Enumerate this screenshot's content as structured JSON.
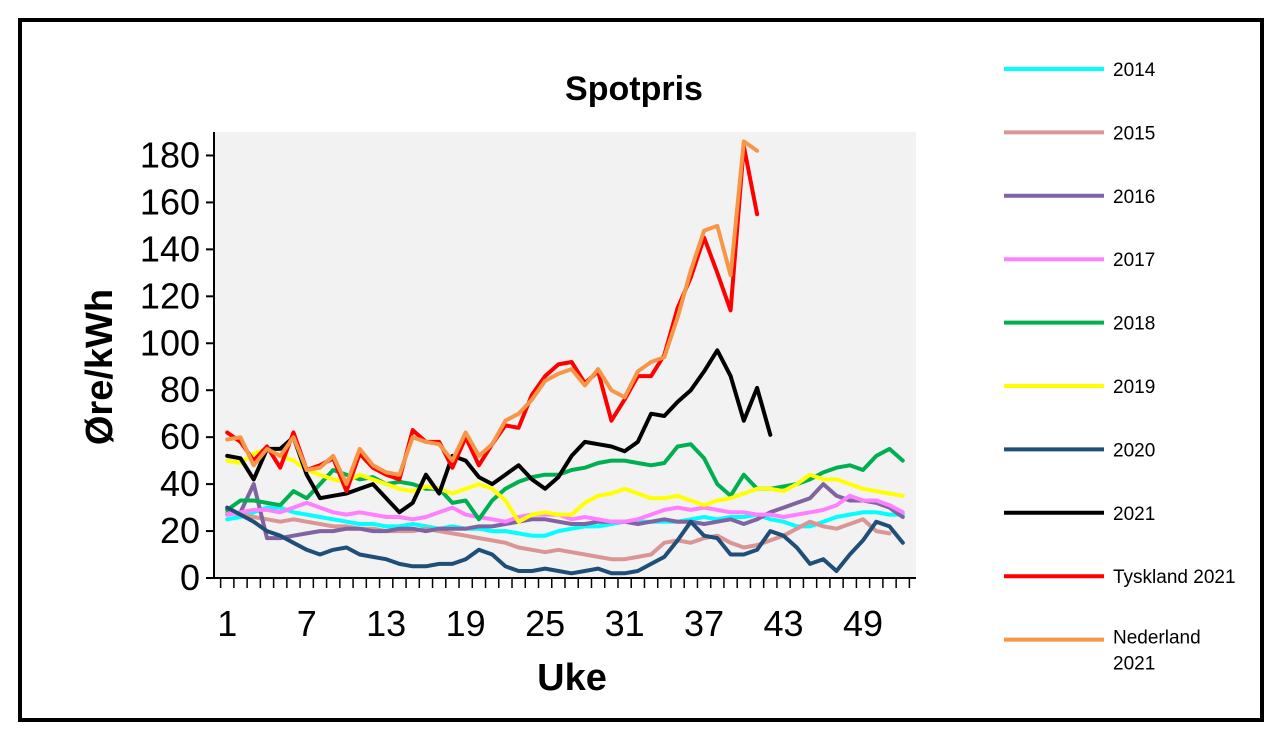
{
  "chart_data": {
    "type": "line",
    "title": "Spotpris",
    "xlabel": "Uke",
    "ylabel": "Øre/kWh",
    "ylim": [
      0,
      190
    ],
    "xlim": [
      0,
      53
    ],
    "yticks": [
      0,
      20,
      40,
      60,
      80,
      100,
      120,
      140,
      160,
      180
    ],
    "xtick_labels": [
      "1",
      "7",
      "13",
      "19",
      "25",
      "31",
      "37",
      "43",
      "49"
    ],
    "xtick_values": [
      1,
      7,
      13,
      19,
      25,
      31,
      37,
      43,
      49
    ],
    "grid": false,
    "legend_position": "right",
    "series": [
      {
        "name": "2014",
        "color": "#00ffff",
        "values": [
          25,
          26,
          28,
          30,
          30,
          28,
          27,
          26,
          25,
          24,
          23,
          23,
          22,
          22,
          23,
          22,
          21,
          22,
          21,
          21,
          20,
          20,
          19,
          18,
          18,
          20,
          21,
          22,
          22,
          23,
          24,
          24,
          24,
          24,
          24,
          25,
          26,
          25,
          26,
          26,
          27,
          25,
          24,
          22,
          22,
          24,
          26,
          27,
          28,
          28,
          27,
          27
        ]
      },
      {
        "name": "2015",
        "color": "#d99694",
        "values": [
          28,
          27,
          26,
          25,
          24,
          25,
          24,
          23,
          22,
          22,
          21,
          21,
          20,
          20,
          20,
          21,
          20,
          19,
          18,
          17,
          16,
          15,
          13,
          12,
          11,
          12,
          11,
          10,
          9,
          8,
          8,
          9,
          10,
          15,
          16,
          15,
          17,
          18,
          15,
          13,
          14,
          16,
          18,
          21,
          24,
          22,
          21,
          23,
          25,
          20,
          19,
          null
        ]
      },
      {
        "name": "2016",
        "color": "#8064a2",
        "values": [
          27,
          28,
          40,
          17,
          17,
          18,
          19,
          20,
          20,
          21,
          21,
          20,
          20,
          21,
          21,
          20,
          21,
          21,
          21,
          22,
          22,
          23,
          24,
          25,
          25,
          24,
          23,
          23,
          24,
          24,
          24,
          23,
          24,
          25,
          24,
          24,
          23,
          24,
          25,
          23,
          25,
          28,
          30,
          32,
          34,
          40,
          35,
          33,
          33,
          32,
          30,
          26
        ]
      },
      {
        "name": "2017",
        "color": "#ff80ff",
        "values": [
          27,
          28,
          29,
          29,
          28,
          30,
          32,
          30,
          28,
          27,
          28,
          27,
          26,
          26,
          25,
          26,
          28,
          30,
          27,
          26,
          25,
          24,
          26,
          27,
          27,
          27,
          25,
          26,
          25,
          24,
          24,
          25,
          27,
          29,
          30,
          29,
          30,
          29,
          28,
          28,
          27,
          27,
          26,
          27,
          28,
          29,
          31,
          35,
          33,
          33,
          31,
          28
        ]
      },
      {
        "name": "2018",
        "color": "#00b050",
        "values": [
          29,
          33,
          33,
          32,
          31,
          37,
          34,
          40,
          46,
          44,
          42,
          43,
          40,
          41,
          40,
          38,
          38,
          32,
          33,
          25,
          33,
          38,
          41,
          43,
          44,
          44,
          46,
          47,
          49,
          50,
          50,
          49,
          48,
          49,
          56,
          57,
          51,
          40,
          35,
          44,
          38,
          38,
          39,
          40,
          42,
          45,
          47,
          48,
          46,
          52,
          55,
          50
        ]
      },
      {
        "name": "2019",
        "color": "#ffff00",
        "values": [
          50,
          49,
          53,
          55,
          52,
          50,
          46,
          44,
          42,
          41,
          44,
          42,
          40,
          38,
          37,
          39,
          38,
          36,
          38,
          40,
          38,
          33,
          24,
          27,
          28,
          27,
          27,
          32,
          35,
          36,
          38,
          36,
          34,
          34,
          35,
          33,
          31,
          33,
          34,
          36,
          38,
          38,
          37,
          40,
          44,
          42,
          42,
          40,
          38,
          37,
          36,
          35
        ]
      },
      {
        "name": "2020",
        "color": "#1f4e79",
        "values": [
          30,
          27,
          24,
          20,
          18,
          15,
          12,
          10,
          12,
          13,
          10,
          9,
          8,
          6,
          5,
          5,
          6,
          6,
          8,
          12,
          10,
          5,
          3,
          3,
          4,
          3,
          2,
          3,
          4,
          2,
          2,
          3,
          6,
          9,
          16,
          24,
          18,
          17,
          10,
          10,
          12,
          20,
          18,
          13,
          6,
          8,
          3,
          10,
          16,
          24,
          22,
          15
        ]
      },
      {
        "name": "2021",
        "color": "#000000",
        "values": [
          52,
          51,
          42,
          55,
          55,
          60,
          44,
          34,
          35,
          36,
          38,
          40,
          34,
          28,
          32,
          44,
          36,
          52,
          50,
          43,
          40,
          44,
          48,
          42,
          38,
          43,
          52,
          58,
          57,
          56,
          54,
          58,
          70,
          69,
          75,
          80,
          88,
          97,
          86,
          67,
          81,
          61
        ]
      },
      {
        "name": "Tyskland 2021",
        "color": "#ff0000",
        "values": [
          62,
          58,
          50,
          56,
          47,
          62,
          46,
          48,
          51,
          37,
          53,
          47,
          44,
          42,
          63,
          58,
          58,
          47,
          60,
          48,
          57,
          65,
          64,
          78,
          86,
          91,
          92,
          83,
          88,
          67,
          76,
          86,
          86,
          95,
          115,
          128,
          145,
          130,
          114,
          184,
          155
        ]
      },
      {
        "name": "Nederland 2021",
        "color": "#f79646",
        "values": [
          59,
          60,
          48,
          55,
          52,
          60,
          46,
          47,
          52,
          40,
          55,
          48,
          45,
          44,
          60,
          58,
          57,
          50,
          62,
          52,
          57,
          67,
          70,
          76,
          84,
          87,
          89,
          82,
          89,
          80,
          77,
          88,
          92,
          94,
          111,
          131,
          148,
          150,
          129,
          186,
          182
        ]
      }
    ]
  }
}
